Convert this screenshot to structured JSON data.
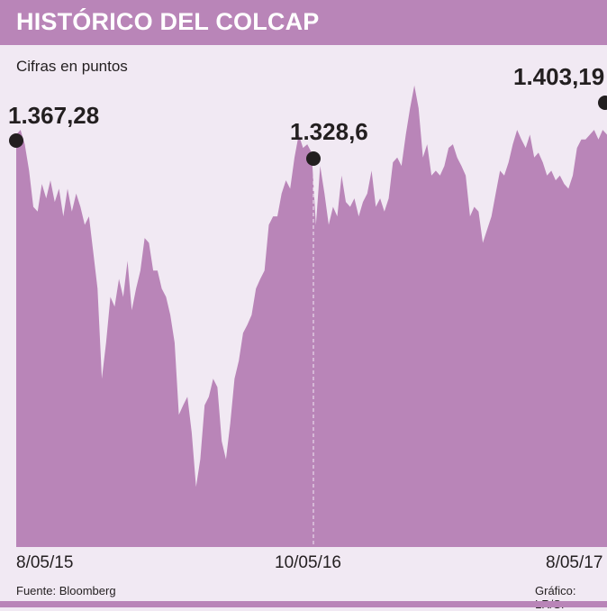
{
  "chart_data": {
    "type": "area",
    "title": "HISTÓRICO DEL COLCAP",
    "subtitle": "Cifras en puntos",
    "x_tick_labels": [
      "8/05/15",
      "10/05/16",
      "8/05/17"
    ],
    "ylim": [
      1029,
      1484
    ],
    "grid": false,
    "color": "#b985b8",
    "values": [
      1372,
      1376,
      1364,
      1342,
      1312,
      1308,
      1331,
      1319,
      1334,
      1316,
      1327,
      1304,
      1327,
      1308,
      1323,
      1312,
      1297,
      1304,
      1274,
      1244,
      1169,
      1199,
      1237,
      1229,
      1252,
      1237,
      1267,
      1226,
      1244,
      1259,
      1286,
      1282,
      1259,
      1259,
      1244,
      1237,
      1222,
      1199,
      1139,
      1147,
      1154,
      1124,
      1079,
      1102,
      1147,
      1154,
      1169,
      1162,
      1117,
      1102,
      1132,
      1169,
      1184,
      1207,
      1214,
      1222,
      1244,
      1252,
      1259,
      1297,
      1304,
      1304,
      1323,
      1334,
      1327,
      1353,
      1372,
      1361,
      1364,
      1357,
      1297,
      1346,
      1323,
      1297,
      1312,
      1304,
      1338,
      1316,
      1312,
      1319,
      1304,
      1316,
      1323,
      1342,
      1312,
      1319,
      1308,
      1319,
      1349,
      1353,
      1346,
      1372,
      1394,
      1413,
      1394,
      1353,
      1364,
      1338,
      1342,
      1338,
      1346,
      1361,
      1364,
      1353,
      1346,
      1338,
      1304,
      1312,
      1308,
      1282,
      1293,
      1304,
      1323,
      1342,
      1338,
      1349,
      1364,
      1376,
      1368,
      1361,
      1372,
      1353,
      1357,
      1349,
      1338,
      1342,
      1334,
      1338,
      1331,
      1327,
      1338,
      1361,
      1368,
      1368,
      1372,
      1376,
      1368,
      1376,
      1372
    ],
    "annotations": [
      {
        "label": "1.367,28",
        "value": 1367.28
      },
      {
        "label": "1.328,6",
        "value": 1328.6
      },
      {
        "label": "1.403,19",
        "value": 1403.19
      }
    ]
  },
  "footer": {
    "source": "Fuente: Bloomberg",
    "credit": "Gráfico: LR/S."
  }
}
